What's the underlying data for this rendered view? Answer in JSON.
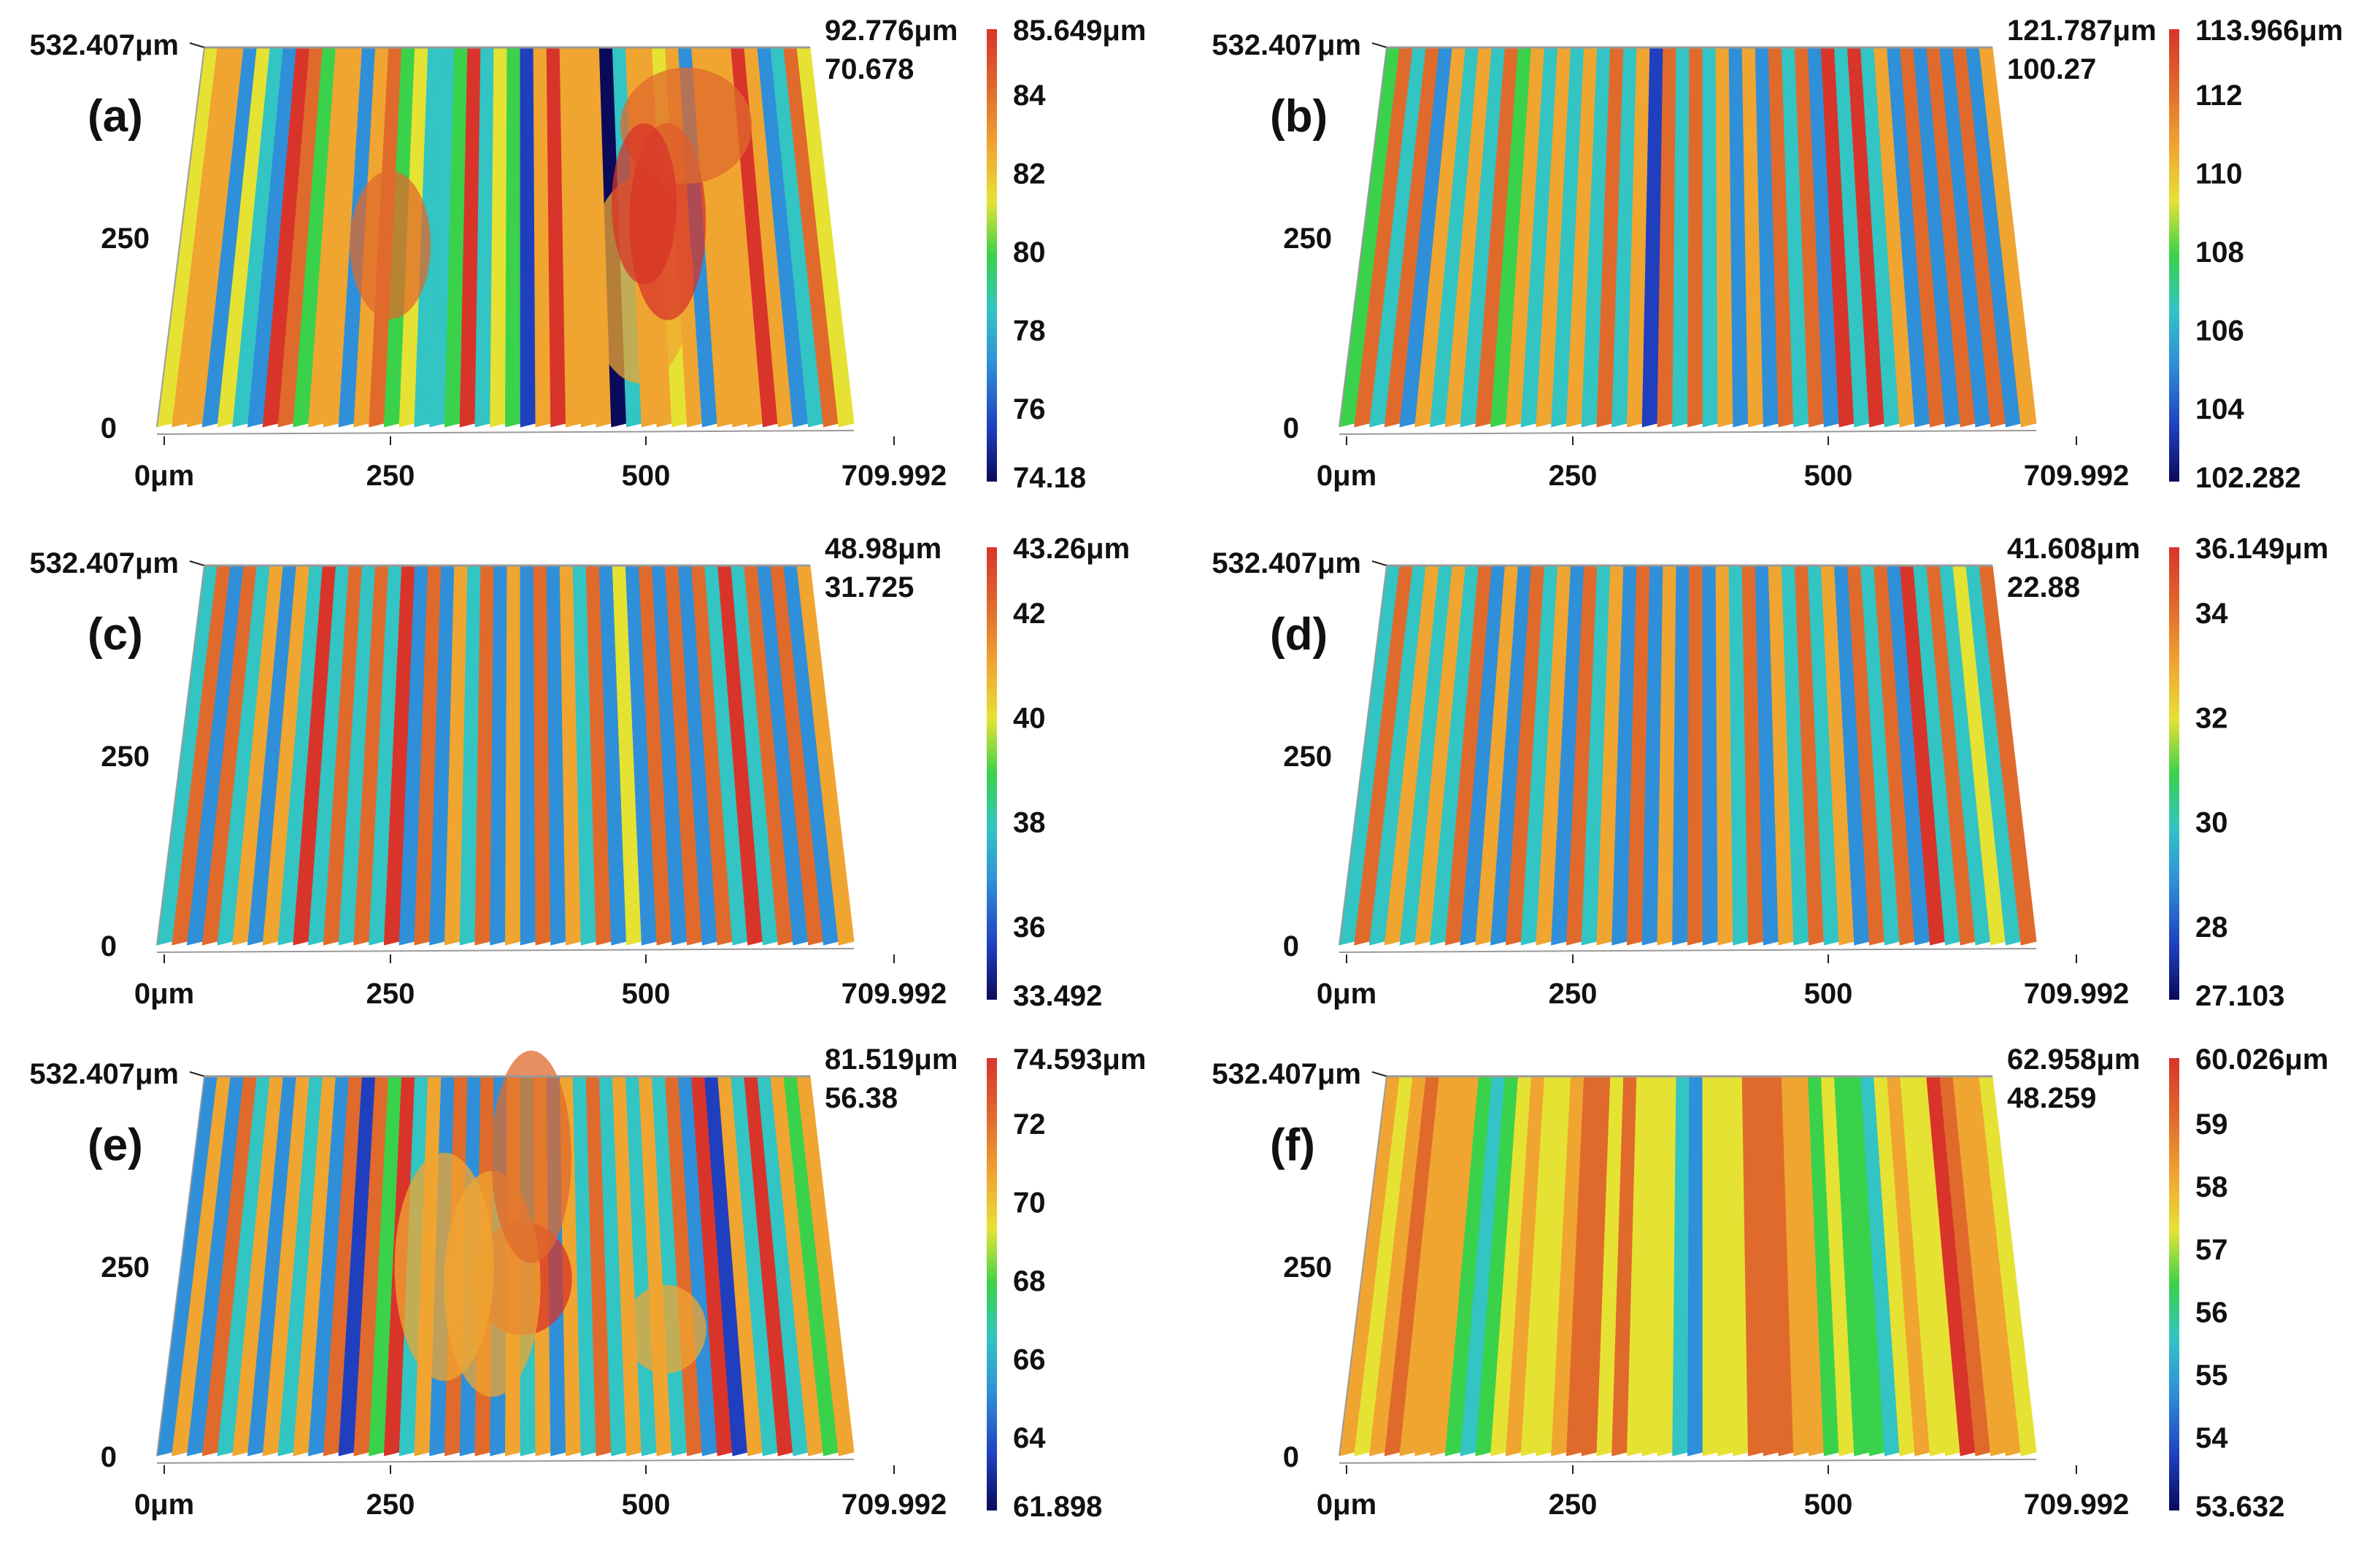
{
  "figure": {
    "panels": [
      {
        "label": "(a)",
        "y_top": "532.407μm",
        "y_mid": "250",
        "y_zero": "0",
        "x_ticks": [
          "0μm",
          "250",
          "500",
          "709.992"
        ],
        "z_top": "92.776μm",
        "z_sub": "70.678",
        "cbar": {
          "max": "85.649μm",
          "ticks": [
            "84",
            "82",
            "80",
            "78",
            "76"
          ],
          "min": "74.18"
        },
        "surface": {
          "seed": 11,
          "mode": "patchy",
          "warm_bias": 0.45
        }
      },
      {
        "label": "(b)",
        "y_top": "532.407μm",
        "y_mid": "250",
        "y_zero": "0",
        "x_ticks": [
          "0μm",
          "250",
          "500",
          "709.992"
        ],
        "z_top": "121.787μm",
        "z_sub": "100.27",
        "cbar": {
          "max": "113.966μm",
          "ticks": [
            "112",
            "110",
            "108",
            "106",
            "104"
          ],
          "min": "102.282"
        },
        "surface": {
          "seed": 23,
          "mode": "stripes",
          "warm_bias": 0.2
        }
      },
      {
        "label": "(c)",
        "y_top": "532.407μm",
        "y_mid": "250",
        "y_zero": "0",
        "x_ticks": [
          "0μm",
          "250",
          "500",
          "709.992"
        ],
        "z_top": "48.98μm",
        "z_sub": "31.725",
        "cbar": {
          "max": "43.26μm",
          "ticks": [
            "42",
            "40",
            "38",
            "36"
          ],
          "min": "33.492"
        },
        "surface": {
          "seed": 37,
          "mode": "stripes",
          "warm_bias": 0.15
        }
      },
      {
        "label": "(d)",
        "y_top": "532.407μm",
        "y_mid": "250",
        "y_zero": "0",
        "x_ticks": [
          "0μm",
          "250",
          "500",
          "709.992"
        ],
        "z_top": "41.608μm",
        "z_sub": "22.88",
        "cbar": {
          "max": "36.149μm",
          "ticks": [
            "34",
            "32",
            "30",
            "28"
          ],
          "min": "27.103"
        },
        "surface": {
          "seed": 41,
          "mode": "stripes",
          "warm_bias": 0.1
        }
      },
      {
        "label": "(e)",
        "y_top": "532.407μm",
        "y_mid": "250",
        "y_zero": "0",
        "x_ticks": [
          "0μm",
          "250",
          "500",
          "709.992"
        ],
        "z_top": "81.519μm",
        "z_sub": "56.38",
        "cbar": {
          "max": "74.593μm",
          "ticks": [
            "72",
            "70",
            "68",
            "66",
            "64"
          ],
          "min": "61.898"
        },
        "surface": {
          "seed": 53,
          "mode": "stripes-patch",
          "warm_bias": 0.25
        }
      },
      {
        "label": "(f)",
        "y_top": "532.407μm",
        "y_mid": "250",
        "y_zero": "0",
        "x_ticks": [
          "0μm",
          "250",
          "500",
          "709.992"
        ],
        "z_top": "62.958μm",
        "z_sub": "48.259",
        "cbar": {
          "max": "60.026μm",
          "ticks": [
            "59",
            "58",
            "57",
            "56",
            "55",
            "54"
          ],
          "min": "53.632"
        },
        "surface": {
          "seed": 67,
          "mode": "smooth",
          "warm_bias": 0.6
        }
      }
    ],
    "colors": {
      "colormap": [
        "#0a0a5a",
        "#1f3fbf",
        "#2f8fd8",
        "#33c4c4",
        "#3ad24a",
        "#e6e234",
        "#f0a531",
        "#e06a2c",
        "#d8342a"
      ],
      "axis": "#222222",
      "grid": "#9a9a9a"
    }
  }
}
